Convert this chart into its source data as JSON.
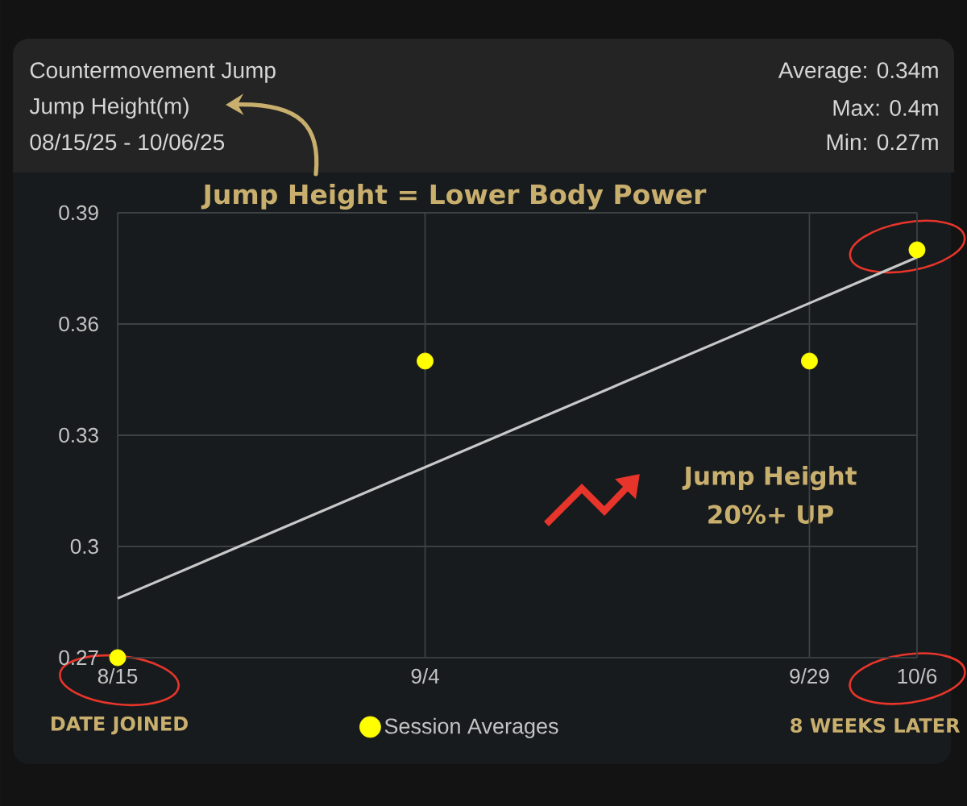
{
  "chart_data": {
    "type": "scatter",
    "title": "Countermovement Jump",
    "subtitle": "Jump Height(m)",
    "annotations": [
      "08/15/25 - 10/06/25",
      "Average: 0.34m",
      "Max: 0.4m",
      "Min: 0.27m",
      "Jump Height = Lower Body Power",
      "Jump Height 20%+ UP",
      "DATE JOINED",
      "8 WEEKS LATER"
    ],
    "series": [
      {
        "name": "Session Averages",
        "color": "#ffff00",
        "x": [
          "--08-15",
          "--09-04",
          "--09-29",
          "--10-06"
        ],
        "values": [
          0.27,
          0.35,
          0.35,
          0.38
        ]
      },
      {
        "type": "line",
        "color": "#c8c8c8",
        "marker": "none",
        "x": [
          "--08-15",
          "--10-06"
        ],
        "values": [
          0.286,
          0.378
        ]
      }
    ],
    "xlim": [
      "--08-15",
      "--10-06"
    ],
    "ylim": [
      0.27,
      0.39
    ],
    "xticks": [
      {
        "value": "--08-15",
        "label": "8/15"
      },
      {
        "value": "--09-04",
        "label": "9/4"
      },
      {
        "value": "--09-29",
        "label": "9/29"
      },
      {
        "value": "--10-06",
        "label": "10/6"
      }
    ],
    "yticks": [
      0.27,
      0.3,
      0.33,
      0.36,
      0.39
    ],
    "grid": true,
    "legend": "bottom",
    "marker": "circle"
  }
}
